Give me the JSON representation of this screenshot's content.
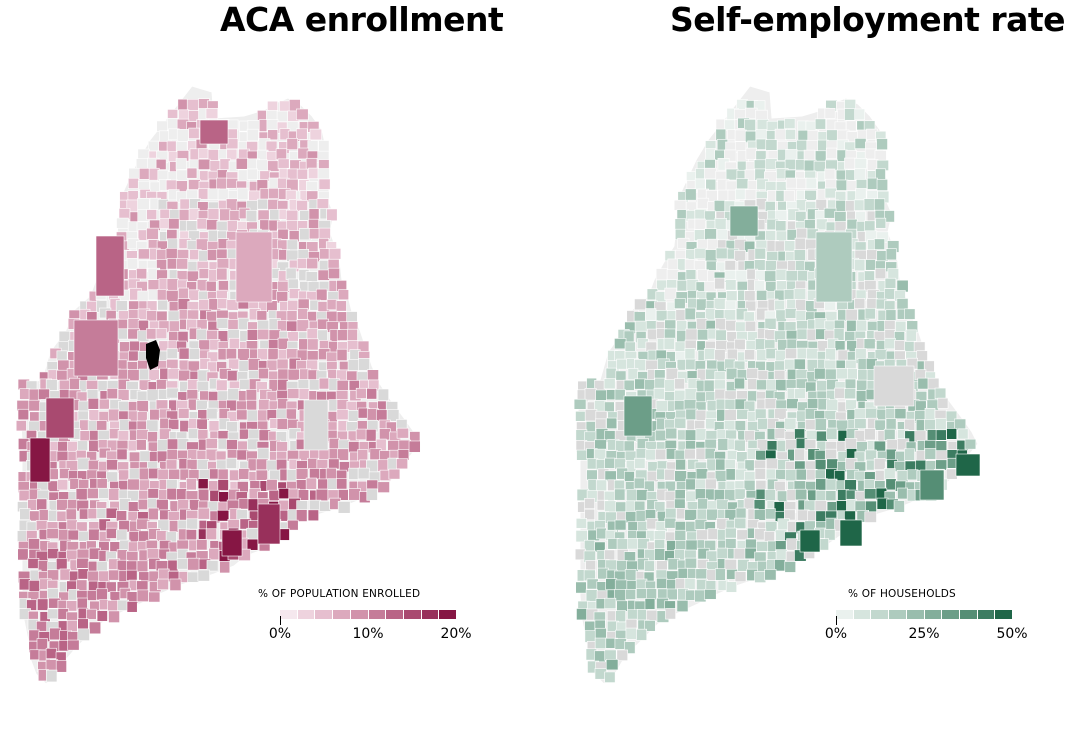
{
  "maps": [
    {
      "id": "aca",
      "title": "ACA enrollment",
      "legend": {
        "title": "% OF POPULATION ENROLLED",
        "ticks": [
          "0%",
          "10%",
          "20%"
        ],
        "colors": [
          "#f5e8ee",
          "#eed3de",
          "#e6bfcf",
          "#dca9bd",
          "#d193ab",
          "#c57c99",
          "#b96486",
          "#a94a70",
          "#98305b",
          "#861644"
        ]
      },
      "palette": {
        "no_data": "#eeeeee",
        "suppressed": "#d9d9d9",
        "outlier": "#000000"
      }
    },
    {
      "id": "self",
      "title": "Self-employment rate",
      "legend": {
        "title": "% OF HOUSEHOLDS",
        "ticks": [
          "0%",
          "25%",
          "50%"
        ],
        "colors": [
          "#eaf1ee",
          "#d6e5de",
          "#c2d8ce",
          "#aecbbe",
          "#99bdad",
          "#83ae9b",
          "#6c9e88",
          "#558e75",
          "#3c7c61",
          "#1f6648"
        ]
      },
      "palette": {
        "no_data": "#eeeeee",
        "suppressed": "#d9d9d9"
      }
    }
  ]
}
